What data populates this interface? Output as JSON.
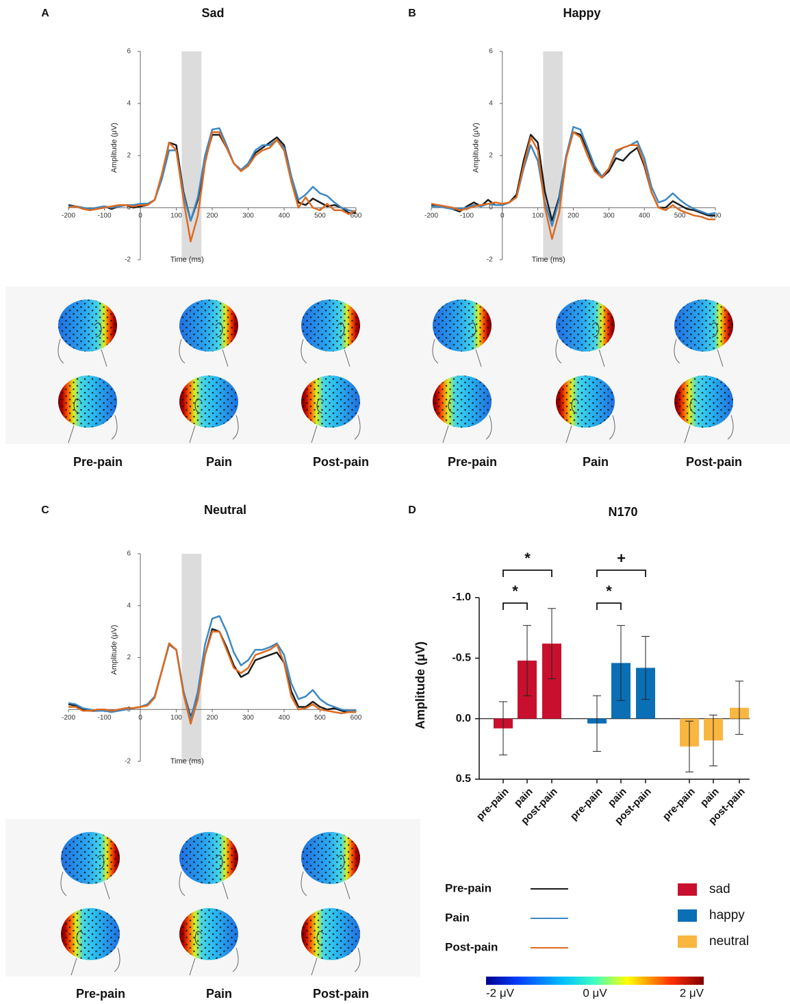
{
  "chart_data": [
    {
      "type": "line",
      "panel": "A",
      "title": "Sad",
      "x_label": "Time (ms)",
      "y_label": "Amplitude (μV)",
      "x": [
        -200,
        -180,
        -160,
        -140,
        -120,
        -100,
        -80,
        -60,
        -40,
        -20,
        0,
        20,
        40,
        60,
        80,
        100,
        120,
        140,
        160,
        180,
        200,
        220,
        240,
        260,
        280,
        300,
        320,
        340,
        360,
        380,
        400,
        420,
        440,
        460,
        480,
        500,
        520,
        540,
        560,
        580,
        600
      ],
      "series": [
        {
          "name": "Pre-pain",
          "color": "#1b1b1b",
          "values": [
            0.1,
            0.05,
            0,
            -0.1,
            0,
            0.05,
            -0.05,
            0.05,
            0.1,
            0,
            0.05,
            0.1,
            0.3,
            1.2,
            2.5,
            2.4,
            0.6,
            -0.5,
            0.3,
            1.8,
            2.8,
            2.8,
            2.3,
            1.7,
            1.45,
            1.6,
            2.1,
            2.3,
            2.5,
            2.7,
            2.4,
            1.2,
            0.2,
            0.1,
            0.35,
            0.2,
            0.05,
            0.1,
            0,
            -0.2,
            -0.2
          ]
        },
        {
          "name": "Pain",
          "color": "#3b88c4",
          "values": [
            0.05,
            0.05,
            0,
            -0.05,
            0,
            0.05,
            0,
            0.05,
            0.1,
            0.1,
            0.15,
            0.15,
            0.3,
            1.1,
            2.2,
            2.2,
            0.5,
            -0.5,
            0.4,
            2.0,
            3.0,
            3.05,
            2.4,
            1.7,
            1.45,
            1.7,
            2.2,
            2.4,
            2.4,
            2.6,
            2.3,
            1.2,
            0.3,
            0.5,
            0.8,
            0.55,
            0.45,
            0.2,
            0,
            -0.1,
            -0.15
          ]
        },
        {
          "name": "Post-pain",
          "color": "#dd6a1f",
          "values": [
            0,
            0.05,
            -0.05,
            -0.1,
            -0.05,
            0,
            0.05,
            0.1,
            0.1,
            0.05,
            0.1,
            0.1,
            0.3,
            1.3,
            2.5,
            2.2,
            0.3,
            -1.3,
            -0.3,
            1.7,
            2.9,
            2.9,
            2.3,
            1.7,
            1.4,
            1.6,
            2.0,
            2.2,
            2.3,
            2.6,
            2.2,
            1.0,
            0,
            0.4,
            0,
            -0.1,
            0.15,
            -0.1,
            -0.1,
            -0.25,
            -0.1
          ]
        }
      ],
      "xlim": [
        -200,
        600
      ],
      "ylim": [
        -2,
        6
      ],
      "xticks": [
        -200,
        -100,
        0,
        100,
        200,
        300,
        400,
        500,
        600
      ],
      "yticks": [
        -2,
        0,
        2,
        4,
        6
      ],
      "window": [
        115,
        170
      ],
      "topomap_labels": [
        "Pre-pain",
        "Pain",
        "Post-pain"
      ]
    },
    {
      "type": "line",
      "panel": "B",
      "title": "Happy",
      "x_label": "Time (ms)",
      "y_label": "Amplitude (μV)",
      "x": [
        -200,
        -180,
        -160,
        -140,
        -120,
        -100,
        -80,
        -60,
        -40,
        -20,
        0,
        20,
        40,
        60,
        80,
        100,
        120,
        140,
        160,
        180,
        200,
        220,
        240,
        260,
        280,
        300,
        320,
        340,
        360,
        380,
        400,
        420,
        440,
        460,
        480,
        500,
        520,
        540,
        560,
        580,
        600
      ],
      "series": [
        {
          "name": "Pre-pain",
          "color": "#1b1b1b",
          "values": [
            0.1,
            0.05,
            0,
            -0.05,
            -0.15,
            0.05,
            0.2,
            0.05,
            0.3,
            0.1,
            0.1,
            0.2,
            0.5,
            1.8,
            2.8,
            2.5,
            0.6,
            -0.5,
            0.4,
            2.0,
            2.9,
            2.8,
            2.2,
            1.5,
            1.15,
            1.4,
            1.9,
            1.8,
            2.1,
            2.3,
            1.6,
            0.6,
            0,
            0,
            0.25,
            0.1,
            -0.05,
            -0.1,
            -0.2,
            -0.3,
            -0.3
          ]
        },
        {
          "name": "Pain",
          "color": "#3b88c4",
          "values": [
            0.05,
            0.05,
            0,
            -0.05,
            -0.05,
            0,
            0.1,
            0.05,
            0.15,
            0.1,
            0.1,
            0.2,
            0.4,
            1.5,
            2.4,
            1.8,
            0.2,
            -0.7,
            0.3,
            2.0,
            3.1,
            3.0,
            2.3,
            1.6,
            1.2,
            1.5,
            2.1,
            2.3,
            2.4,
            2.55,
            1.9,
            0.8,
            0.2,
            0.3,
            0.55,
            0.3,
            0.1,
            -0.05,
            -0.15,
            -0.25,
            -0.2
          ]
        },
        {
          "name": "Post-pain",
          "color": "#dd6a1f",
          "values": [
            0.15,
            0.1,
            0.05,
            0,
            -0.1,
            -0.05,
            0.05,
            0.1,
            0.15,
            0.2,
            0.15,
            0.2,
            0.4,
            1.6,
            2.7,
            2.2,
            0,
            -1.2,
            -0.2,
            1.9,
            2.9,
            2.7,
            2.0,
            1.4,
            1.15,
            1.5,
            2.2,
            2.3,
            2.4,
            2.4,
            1.7,
            0.6,
            0,
            -0.1,
            0.1,
            -0.1,
            -0.2,
            -0.3,
            -0.35,
            -0.45,
            -0.45
          ]
        }
      ],
      "xlim": [
        -200,
        600
      ],
      "ylim": [
        -2,
        6
      ],
      "xticks": [
        -200,
        -100,
        0,
        100,
        200,
        300,
        400,
        500,
        600
      ],
      "yticks": [
        -2,
        0,
        2,
        4,
        6
      ],
      "window": [
        115,
        170
      ],
      "topomap_labels": [
        "Pre-pain",
        "Pain",
        "Post-pain"
      ]
    },
    {
      "type": "line",
      "panel": "C",
      "title": "Neutral",
      "x_label": "Time (ms)",
      "y_label": "Amplitude (μV)",
      "x": [
        -200,
        -180,
        -160,
        -140,
        -120,
        -100,
        -80,
        -60,
        -40,
        -20,
        0,
        20,
        40,
        60,
        80,
        100,
        120,
        140,
        160,
        180,
        200,
        220,
        240,
        260,
        280,
        300,
        320,
        340,
        360,
        380,
        400,
        420,
        440,
        460,
        480,
        500,
        520,
        540,
        560,
        580,
        600
      ],
      "series": [
        {
          "name": "Pre-pain",
          "color": "#1b1b1b",
          "values": [
            0.2,
            0.15,
            0,
            -0.05,
            -0.05,
            0,
            -0.05,
            0,
            0.05,
            0.05,
            0.1,
            0.2,
            0.5,
            1.5,
            2.5,
            2.3,
            0.7,
            -0.3,
            0.5,
            2.1,
            3.1,
            3.0,
            2.4,
            1.7,
            1.25,
            1.4,
            1.9,
            2.0,
            2.1,
            2.2,
            1.8,
            0.7,
            0.1,
            0.1,
            0.3,
            0.1,
            0,
            0.05,
            -0.05,
            -0.1,
            -0.1
          ]
        },
        {
          "name": "Pain",
          "color": "#3b88c4",
          "values": [
            0.25,
            0.2,
            0.05,
            0,
            -0.05,
            -0.05,
            -0.1,
            -0.05,
            0,
            0.05,
            0.1,
            0.2,
            0.5,
            1.5,
            2.5,
            2.3,
            0.7,
            -0.4,
            0.7,
            2.5,
            3.5,
            3.6,
            3.0,
            2.2,
            1.7,
            1.9,
            2.3,
            2.3,
            2.4,
            2.55,
            2.1,
            1.0,
            0.4,
            0.5,
            0.75,
            0.4,
            0.2,
            0.1,
            0,
            -0.05,
            -0.05
          ]
        },
        {
          "name": "Post-pain",
          "color": "#dd6a1f",
          "values": [
            0.1,
            0.1,
            -0.05,
            -0.05,
            0,
            0,
            -0.05,
            0,
            0.05,
            0.05,
            0.1,
            0.15,
            0.45,
            1.5,
            2.55,
            2.3,
            0.6,
            -0.55,
            0.4,
            2.1,
            3.0,
            3.0,
            2.3,
            1.6,
            1.4,
            1.6,
            2.1,
            2.2,
            2.3,
            2.5,
            1.8,
            0.5,
            0,
            0.05,
            0.2,
            0,
            -0.05,
            -0.1,
            -0.15,
            -0.1,
            -0.1
          ]
        }
      ],
      "xlim": [
        -200,
        600
      ],
      "ylim": [
        -2,
        6
      ],
      "xticks": [
        -200,
        -100,
        0,
        100,
        200,
        300,
        400,
        500,
        600
      ],
      "yticks": [
        -2,
        0,
        2,
        4,
        6
      ],
      "window": [
        115,
        170
      ],
      "topomap_labels": [
        "Pre-pain",
        "Pain",
        "Post-pain"
      ]
    },
    {
      "type": "bar",
      "panel": "D",
      "title": "N170",
      "y_label": "Amplitude (μV)",
      "categories": [
        "pre-pain",
        "pain",
        "post-pain"
      ],
      "series": [
        {
          "name": "sad",
          "color": "#c8102e",
          "values": [
            0.08,
            -0.48,
            -0.62
          ],
          "errors": [
            0.22,
            0.29,
            0.29
          ]
        },
        {
          "name": "happy",
          "color": "#0a6fb4",
          "values": [
            0.04,
            -0.46,
            -0.42
          ],
          "errors": [
            0.23,
            0.31,
            0.26
          ]
        },
        {
          "name": "neutral",
          "color": "#f9b641",
          "values": [
            0.23,
            0.18,
            -0.09
          ],
          "errors": [
            0.21,
            0.21,
            0.22
          ]
        }
      ],
      "ylim": [
        0.5,
        -1.0
      ],
      "yticks": [
        {
          "value": -1,
          "label": "-1.0"
        },
        -0.5,
        {
          "value": 0,
          "label": "0.0"
        },
        0.5
      ],
      "annotations": [
        {
          "text": "*",
          "series": 0,
          "between": [
            0,
            1
          ]
        },
        {
          "text": "*",
          "series": 0,
          "between": [
            0,
            2
          ]
        },
        {
          "text": "*",
          "series": 1,
          "between": [
            0,
            1
          ]
        },
        {
          "text": "+",
          "series": 1,
          "between": [
            0,
            2
          ]
        }
      ]
    }
  ],
  "colorbar": {
    "lim": [
      -2,
      2
    ],
    "ticks": [
      {
        "value": -2,
        "label": "-2 μV"
      },
      {
        "value": 0,
        "label": "0 μV"
      },
      {
        "value": 2,
        "label": "2 μV"
      }
    ]
  }
}
